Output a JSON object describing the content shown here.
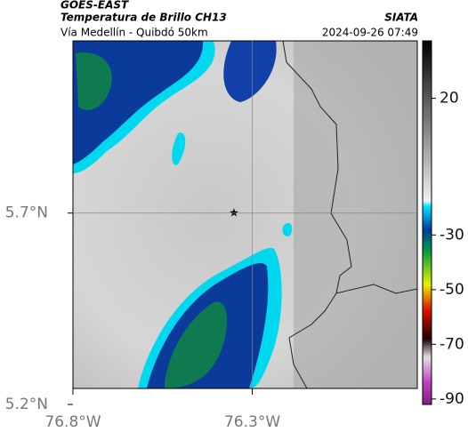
{
  "header": {
    "source": "GOES-EAST",
    "title": "Temperatura de Brillo CH13",
    "org": "SIATA",
    "subtitle": "Vía Medellín - Quibdó 50km",
    "datetime": "2024-09-26 07:49"
  },
  "map": {
    "xlim": [
      -76.8,
      -75.84
    ],
    "ylim": [
      5.2,
      6.15
    ],
    "xticks": [
      {
        "value": -76.8,
        "label": "76.8°W"
      },
      {
        "value": -76.3,
        "label": "76.3°W"
      }
    ],
    "yticks": [
      {
        "value": 5.2,
        "label": "5.2°N"
      },
      {
        "value": 5.7,
        "label": "5.7°N"
      }
    ],
    "grid": true
  },
  "colorbar": {
    "lim": [
      -92,
      41
    ],
    "ticks": [
      20,
      -30,
      -50,
      -70,
      -90
    ]
  }
}
